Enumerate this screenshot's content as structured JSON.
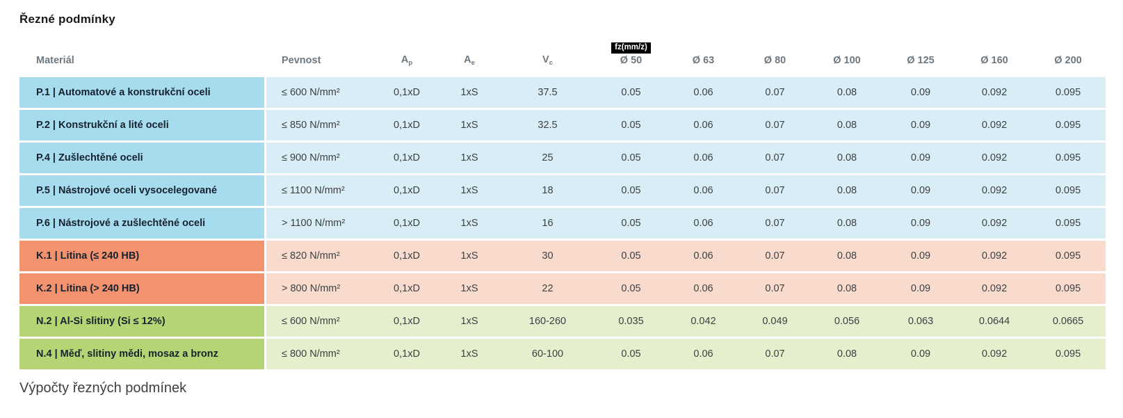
{
  "page": {
    "title": "Řezné podmínky",
    "footer_heading": "Výpočty řezných podmínek"
  },
  "table": {
    "columns": [
      {
        "key": "material",
        "label": "Materiál"
      },
      {
        "key": "pevnost",
        "label": "Pevnost"
      },
      {
        "key": "ap",
        "label": "A",
        "sub": "p"
      },
      {
        "key": "ae",
        "label": "A",
        "sub": "e"
      },
      {
        "key": "vc",
        "label": "V",
        "sub": "c"
      },
      {
        "key": "d50",
        "label": "Ø 50",
        "badge": "fz(mm/z)"
      },
      {
        "key": "d63",
        "label": "Ø 63"
      },
      {
        "key": "d80",
        "label": "Ø 80"
      },
      {
        "key": "d100",
        "label": "Ø 100"
      },
      {
        "key": "d125",
        "label": "Ø 125"
      },
      {
        "key": "d160",
        "label": "Ø 160"
      },
      {
        "key": "d200",
        "label": "Ø 200"
      }
    ],
    "rows": [
      {
        "group": "steel",
        "material": "P.1 | Automatové a konstrukční oceli",
        "pevnost": "≤ 600 N/mm²",
        "ap": "0,1xD",
        "ae": "1xS",
        "vc": "37.5",
        "fz": [
          "0.05",
          "0.06",
          "0.07",
          "0.08",
          "0.09",
          "0.092",
          "0.095"
        ]
      },
      {
        "group": "steel",
        "material": "P.2 | Konstrukční a lité oceli",
        "pevnost": "≤ 850 N/mm²",
        "ap": "0,1xD",
        "ae": "1xS",
        "vc": "32.5",
        "fz": [
          "0.05",
          "0.06",
          "0.07",
          "0.08",
          "0.09",
          "0.092",
          "0.095"
        ]
      },
      {
        "group": "steel",
        "material": "P.4 | Zušlechtěné oceli",
        "pevnost": "≤ 900 N/mm²",
        "ap": "0,1xD",
        "ae": "1xS",
        "vc": "25",
        "fz": [
          "0.05",
          "0.06",
          "0.07",
          "0.08",
          "0.09",
          "0.092",
          "0.095"
        ]
      },
      {
        "group": "steel",
        "material": "P.5 | Nástrojové oceli vysocelegované",
        "pevnost": "≤ 1100 N/mm²",
        "ap": "0,1xD",
        "ae": "1xS",
        "vc": "18",
        "fz": [
          "0.05",
          "0.06",
          "0.07",
          "0.08",
          "0.09",
          "0.092",
          "0.095"
        ]
      },
      {
        "group": "steel",
        "material": "P.6 | Nástrojové a zušlechtěné oceli",
        "pevnost": "> 1100 N/mm²",
        "ap": "0,1xD",
        "ae": "1xS",
        "vc": "16",
        "fz": [
          "0.05",
          "0.06",
          "0.07",
          "0.08",
          "0.09",
          "0.092",
          "0.095"
        ]
      },
      {
        "group": "cast",
        "material": "K.1 | Litina (≤ 240 HB)",
        "pevnost": "≤ 820 N/mm²",
        "ap": "0,1xD",
        "ae": "1xS",
        "vc": "30",
        "fz": [
          "0.05",
          "0.06",
          "0.07",
          "0.08",
          "0.09",
          "0.092",
          "0.095"
        ]
      },
      {
        "group": "cast",
        "material": "K.2 | Litina (> 240 HB)",
        "pevnost": "> 800 N/mm²",
        "ap": "0,1xD",
        "ae": "1xS",
        "vc": "22",
        "fz": [
          "0.05",
          "0.06",
          "0.07",
          "0.08",
          "0.09",
          "0.092",
          "0.095"
        ]
      },
      {
        "group": "nonferrous",
        "material": "N.2 | Al-Si slitiny (Si ≤ 12%)",
        "pevnost": "≤ 600 N/mm²",
        "ap": "0,1xD",
        "ae": "1xS",
        "vc": "160-260",
        "fz": [
          "0.035",
          "0.042",
          "0.049",
          "0.056",
          "0.063",
          "0.0644",
          "0.0665"
        ]
      },
      {
        "group": "nonferrous",
        "material": "N.4 | Měď, slitiny mědi, mosaz a bronz",
        "pevnost": "≤ 800 N/mm²",
        "ap": "0,1xD",
        "ae": "1xS",
        "vc": "60-100",
        "fz": [
          "0.05",
          "0.06",
          "0.07",
          "0.08",
          "0.09",
          "0.092",
          "0.095"
        ]
      }
    ],
    "colors": {
      "steel_label": "#a6dcee",
      "steel_cell": "#d9edf7",
      "cast_label": "#f2926e",
      "cast_cell": "#f9dbce",
      "nonferrous_label": "#b5d574",
      "nonferrous_cell": "#e5efcd",
      "badge_bg": "#000000",
      "badge_text": "#ffffff"
    }
  }
}
